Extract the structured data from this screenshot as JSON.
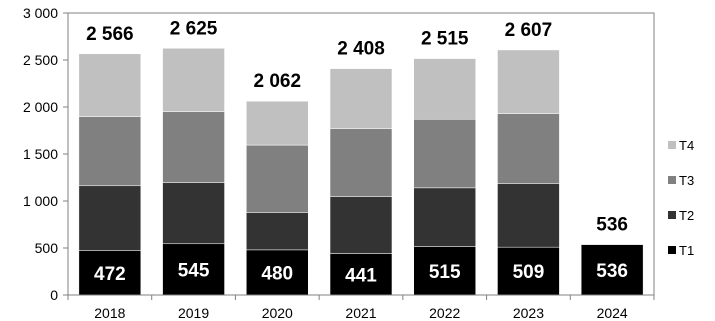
{
  "chart_data": {
    "type": "bar",
    "stacked": true,
    "categories": [
      "2018",
      "2019",
      "2020",
      "2021",
      "2022",
      "2023",
      "2024"
    ],
    "series": [
      {
        "name": "T1",
        "color": "#000000",
        "values": [
          472,
          545,
          480,
          441,
          515,
          509,
          536
        ]
      },
      {
        "name": "T2",
        "color": "#333333",
        "values": [
          690,
          650,
          395,
          605,
          625,
          675,
          null
        ]
      },
      {
        "name": "T3",
        "color": "#808080",
        "values": [
          735,
          755,
          720,
          725,
          730,
          745,
          null
        ]
      },
      {
        "name": "T4",
        "color": "#c0c0c0",
        "values": [
          669,
          675,
          467,
          637,
          645,
          678,
          null
        ]
      }
    ],
    "totals": [
      "2 566",
      "2 625",
      "2 062",
      "2 408",
      "2 515",
      "2 607",
      "536"
    ],
    "t1_labels": [
      "472",
      "545",
      "480",
      "441",
      "515",
      "509",
      "536"
    ],
    "yticks": [
      "0",
      "500",
      "1 000",
      "1 500",
      "2 000",
      "2 500",
      "3 000"
    ],
    "ylim": [
      0,
      3000
    ],
    "legend": [
      "T4",
      "T3",
      "T2",
      "T1"
    ],
    "legend_position": "right",
    "grid": false
  }
}
